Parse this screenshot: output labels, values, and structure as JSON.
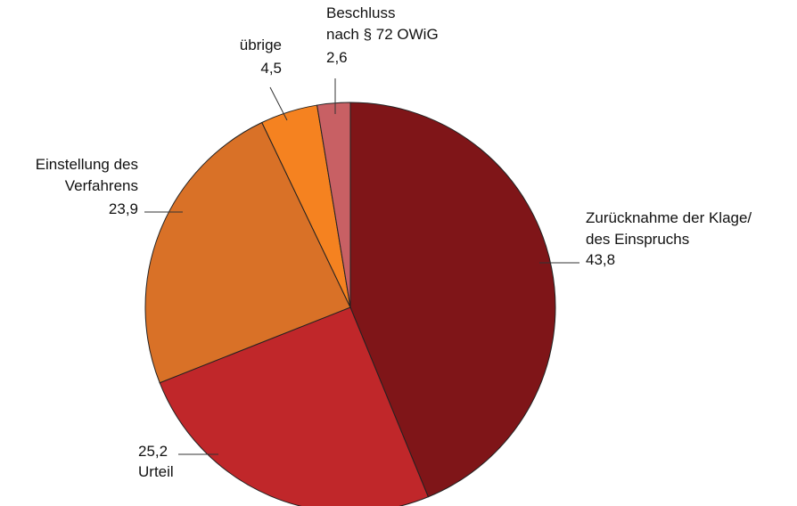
{
  "chart_data": {
    "type": "pie",
    "categories": [
      "Zurücknahme der Klage/\ndes Einspruchs",
      "Urteil",
      "Einstellung des\nVerfahrens",
      "übrige",
      "Beschluss\nnach § 72 OWiG"
    ],
    "values": [
      43.8,
      25.2,
      23.9,
      4.5,
      2.6
    ],
    "value_labels": [
      "43,8",
      "25,2",
      "23,9",
      "4,5",
      "2,6"
    ],
    "colors": [
      "#7f1518",
      "#c0272a",
      "#d97127",
      "#f58220",
      "#c86064"
    ]
  }
}
